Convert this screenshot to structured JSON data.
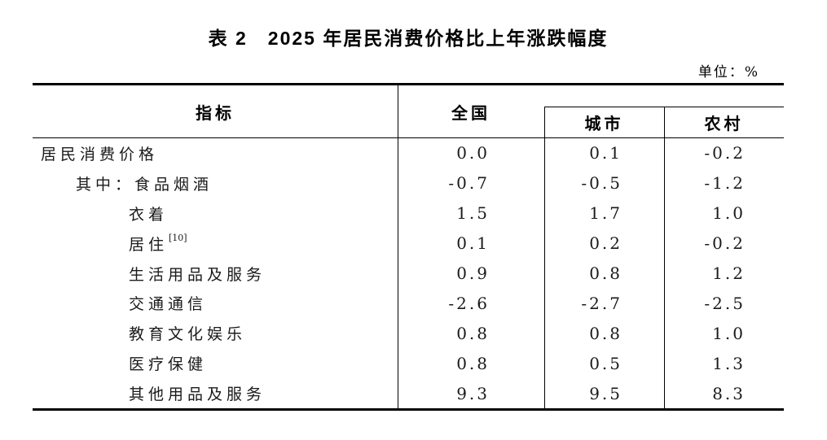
{
  "title": "表 2　2025 年居民消费价格比上年涨跌幅度",
  "unit_label": "单位：%",
  "table": {
    "columns": {
      "indicator": "指标",
      "national": "全国",
      "urban": "城市",
      "rural": "农村"
    },
    "rows": [
      {
        "label": "居民消费价格",
        "indent": 0,
        "national": "0.0",
        "urban": "0.1",
        "rural": "-0.2"
      },
      {
        "label": "其中：食品烟酒",
        "indent": 1,
        "national": "-0.7",
        "urban": "-0.5",
        "rural": "-1.2"
      },
      {
        "label": "衣着",
        "indent": 2,
        "national": "1.5",
        "urban": "1.7",
        "rural": "1.0"
      },
      {
        "label": "居住",
        "superscript": "[10]",
        "indent": 2,
        "national": "0.1",
        "urban": "0.2",
        "rural": "-0.2"
      },
      {
        "label": "生活用品及服务",
        "indent": 2,
        "national": "0.9",
        "urban": "0.8",
        "rural": "1.2"
      },
      {
        "label": "交通通信",
        "indent": 2,
        "national": "-2.6",
        "urban": "-2.7",
        "rural": "-2.5"
      },
      {
        "label": "教育文化娱乐",
        "indent": 2,
        "national": "0.8",
        "urban": "0.8",
        "rural": "1.0"
      },
      {
        "label": "医疗保健",
        "indent": 2,
        "national": "0.8",
        "urban": "0.5",
        "rural": "1.3"
      },
      {
        "label": "其他用品及服务",
        "indent": 2,
        "national": "9.3",
        "urban": "9.5",
        "rural": "8.3"
      }
    ]
  }
}
